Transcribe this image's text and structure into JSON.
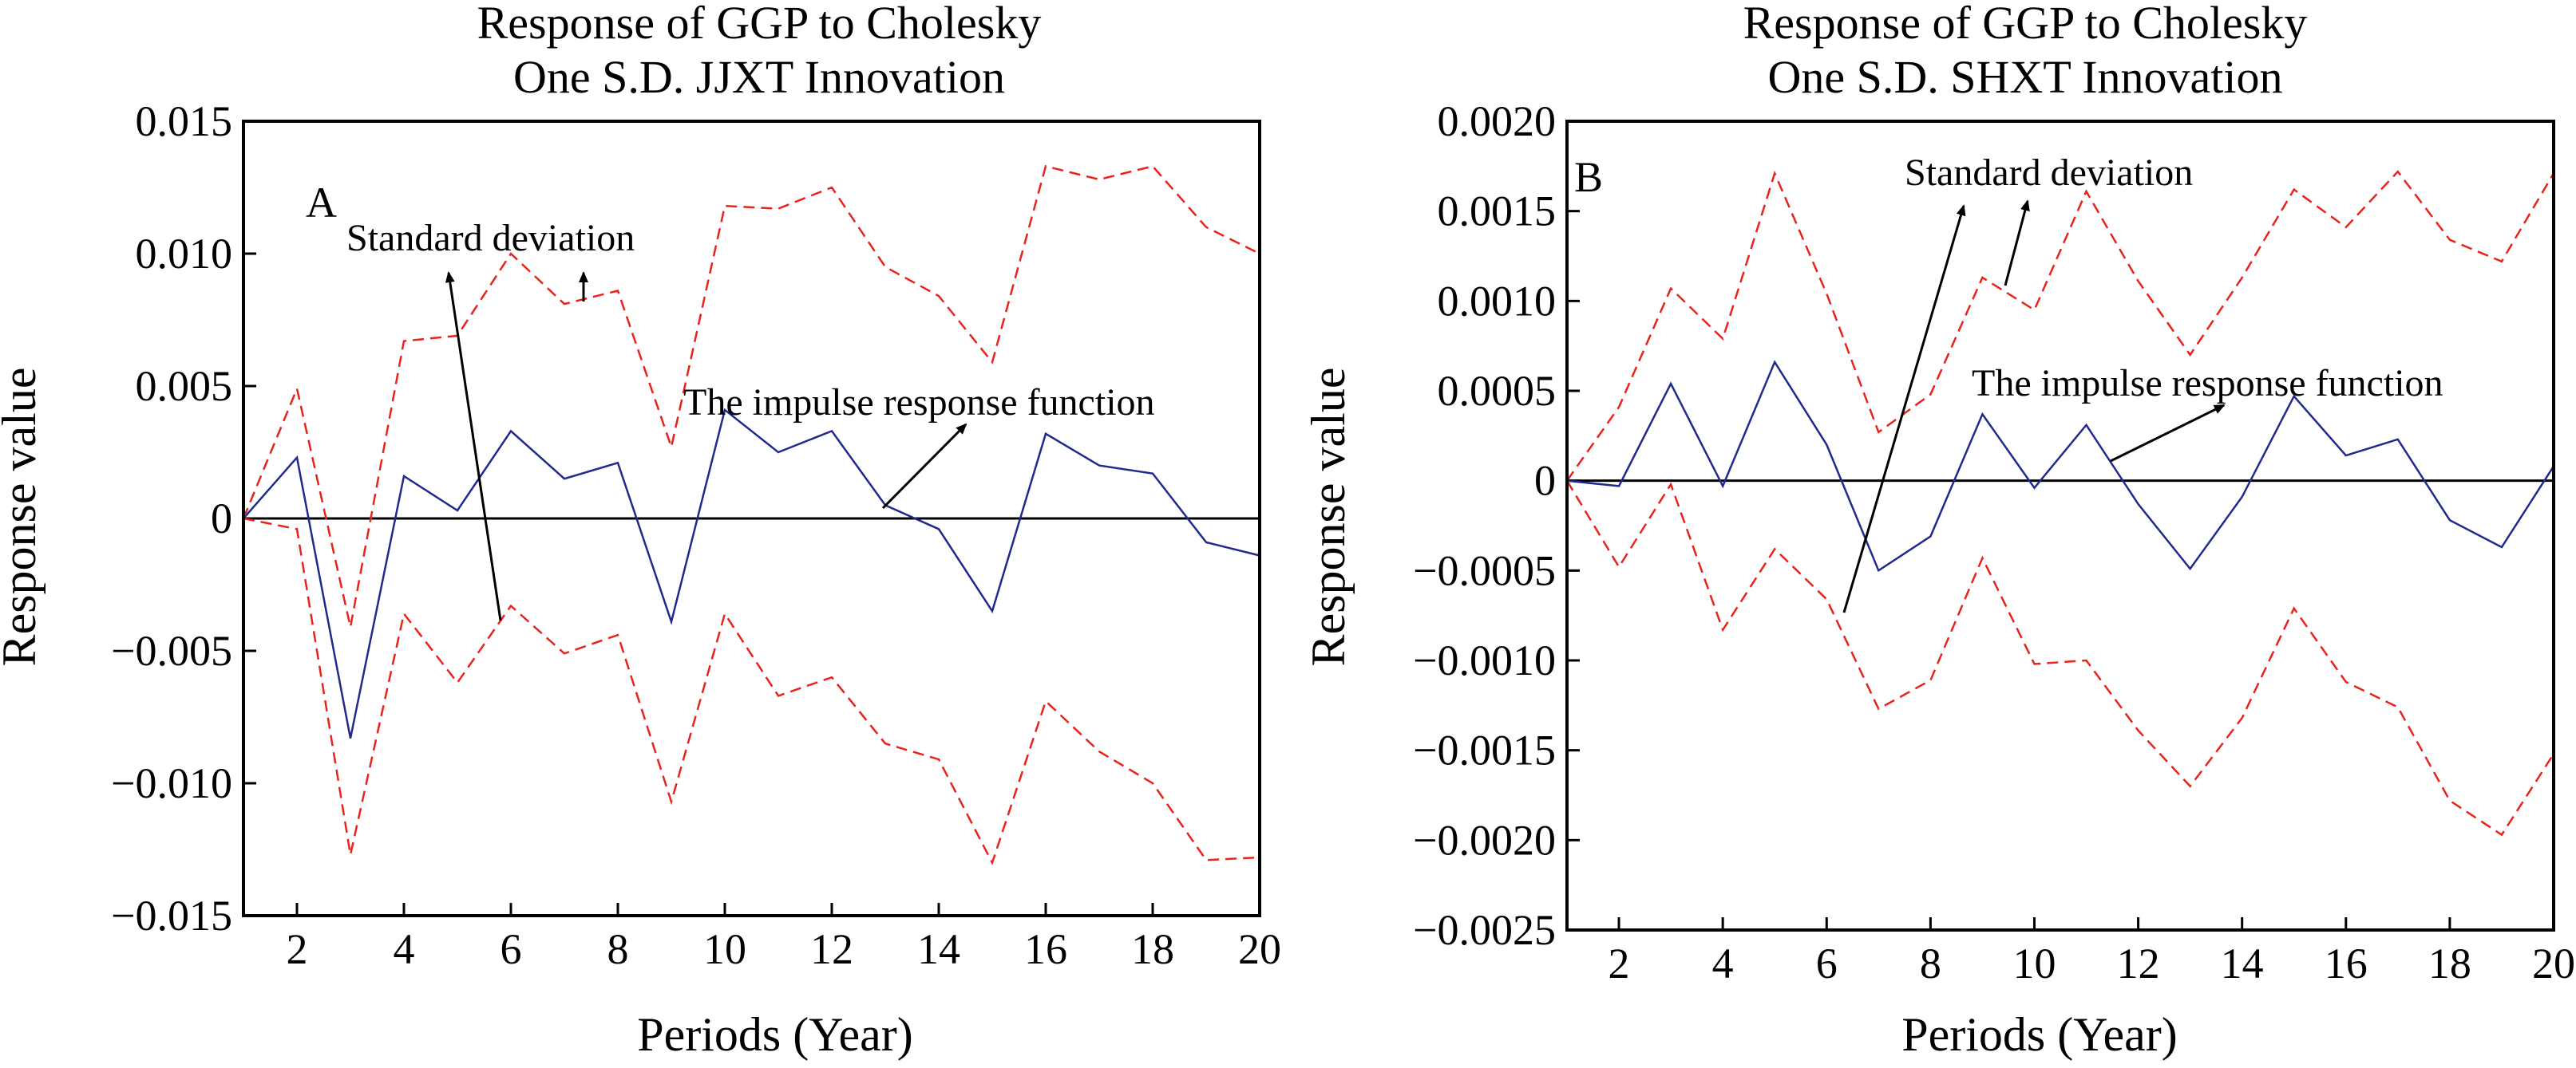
{
  "colors": {
    "irf": "#1f2a8c",
    "band": "#e8231b",
    "zero_line": "#000000",
    "axes": "#000000"
  },
  "chart_data": [
    {
      "type": "line",
      "panel_label": "A",
      "title_lines": [
        "Response of GGP to Cholesky",
        "One S.D. JJXT Innovation"
      ],
      "xlabel": "Periods (Year)",
      "ylabel": "Response value",
      "xlim": [
        1,
        20
      ],
      "ylim": [
        -0.015,
        0.015
      ],
      "x_ticks": [
        2,
        4,
        6,
        8,
        10,
        12,
        14,
        16,
        18,
        20
      ],
      "x_tick_labels": [
        "2",
        "4",
        "6",
        "8",
        "10",
        "12",
        "14",
        "16",
        "18",
        "20"
      ],
      "y_ticks": [
        0.015,
        0.01,
        0.005,
        0,
        -0.005,
        -0.01,
        -0.015
      ],
      "y_tick_labels": [
        "0.015",
        "0.010",
        "0.005",
        "0",
        "−0.005",
        "−0.010",
        "−0.015"
      ],
      "grid": false,
      "zero_line": true,
      "x": [
        1,
        2,
        3,
        4,
        5,
        6,
        7,
        8,
        9,
        10,
        11,
        12,
        13,
        14,
        15,
        16,
        17,
        18,
        19,
        20
      ],
      "series": [
        {
          "style": "solid",
          "color_key": "irf",
          "values": [
            0,
            0.0023,
            -0.0083,
            0.0016,
            0.0003,
            0.0033,
            0.0015,
            0.0021,
            -0.0039,
            0.0041,
            0.0025,
            0.0033,
            0.0005,
            -0.0004,
            -0.0035,
            0.0032,
            0.002,
            0.0017,
            -0.0009,
            -0.0014
          ]
        },
        {
          "style": "dashed",
          "color_key": "band",
          "values": [
            0,
            0.0049,
            -0.0041,
            0.0067,
            0.0069,
            0.01,
            0.0081,
            0.0086,
            0.0027,
            0.0118,
            0.0117,
            0.0125,
            0.0095,
            0.0084,
            0.0059,
            0.0133,
            0.0128,
            0.0133,
            0.011,
            0.01
          ]
        },
        {
          "style": "dashed",
          "color_key": "band",
          "values": [
            0,
            -0.0004,
            -0.0127,
            -0.0036,
            -0.0062,
            -0.0033,
            -0.0051,
            -0.0044,
            -0.0107,
            -0.0036,
            -0.0067,
            -0.006,
            -0.0085,
            -0.0091,
            -0.013,
            -0.0069,
            -0.0088,
            -0.01,
            -0.0129,
            -0.0128
          ]
        }
      ],
      "annotations": [
        {
          "text": "Standard deviation",
          "id": "std"
        },
        {
          "text": "The impulse response function",
          "id": "irf"
        }
      ]
    },
    {
      "type": "line",
      "panel_label": "B",
      "title_lines": [
        "Response of GGP to Cholesky",
        "One S.D. SHXT Innovation"
      ],
      "xlabel": "Periods (Year)",
      "ylabel": "Response value",
      "xlim": [
        1,
        20
      ],
      "ylim": [
        -0.0025,
        0.002
      ],
      "x_ticks": [
        2,
        4,
        6,
        8,
        10,
        12,
        14,
        16,
        18,
        20
      ],
      "x_tick_labels": [
        "2",
        "4",
        "6",
        "8",
        "10",
        "12",
        "14",
        "16",
        "18",
        "20"
      ],
      "y_ticks": [
        0.002,
        0.0015,
        0.001,
        0.0005,
        0,
        -0.0005,
        -0.001,
        -0.0015,
        -0.002,
        -0.0025
      ],
      "y_tick_labels": [
        "0.0020",
        "0.0015",
        "0.0010",
        "0.0005",
        "0",
        "−0.0005",
        "−0.0010",
        "−0.0015",
        "−0.0020",
        "−0.0025"
      ],
      "grid": false,
      "zero_line": true,
      "x": [
        1,
        2,
        3,
        4,
        5,
        6,
        7,
        8,
        9,
        10,
        11,
        12,
        13,
        14,
        15,
        16,
        17,
        18,
        19,
        20
      ],
      "series": [
        {
          "style": "solid",
          "color_key": "irf",
          "values": [
            0,
            -3e-05,
            0.00054,
            -3e-05,
            0.00066,
            0.0002,
            -0.0005,
            -0.00031,
            0.00037,
            -4e-05,
            0.00031,
            -0.00013,
            -0.00049,
            -9e-05,
            0.00047,
            0.00014,
            0.00023,
            -0.00022,
            -0.00037,
            8e-05
          ]
        },
        {
          "style": "dashed",
          "color_key": "band",
          "values": [
            0,
            0.00041,
            0.00107,
            0.00079,
            0.00171,
            0.00104,
            0.00027,
            0.00048,
            0.00113,
            0.00095,
            0.00161,
            0.00111,
            0.0007,
            0.00113,
            0.00162,
            0.00141,
            0.00172,
            0.00134,
            0.00122,
            0.00171
          ]
        },
        {
          "style": "dashed",
          "color_key": "band",
          "values": [
            0,
            -0.00048,
            -2e-05,
            -0.00083,
            -0.00038,
            -0.00066,
            -0.00127,
            -0.00111,
            -0.00043,
            -0.00102,
            -0.001,
            -0.00139,
            -0.0017,
            -0.00132,
            -0.00071,
            -0.00112,
            -0.00126,
            -0.00178,
            -0.00197,
            -0.00152
          ]
        }
      ],
      "annotations": [
        {
          "text": "Standard deviation",
          "id": "std"
        },
        {
          "text": "The impulse response function",
          "id": "irf"
        }
      ]
    }
  ]
}
